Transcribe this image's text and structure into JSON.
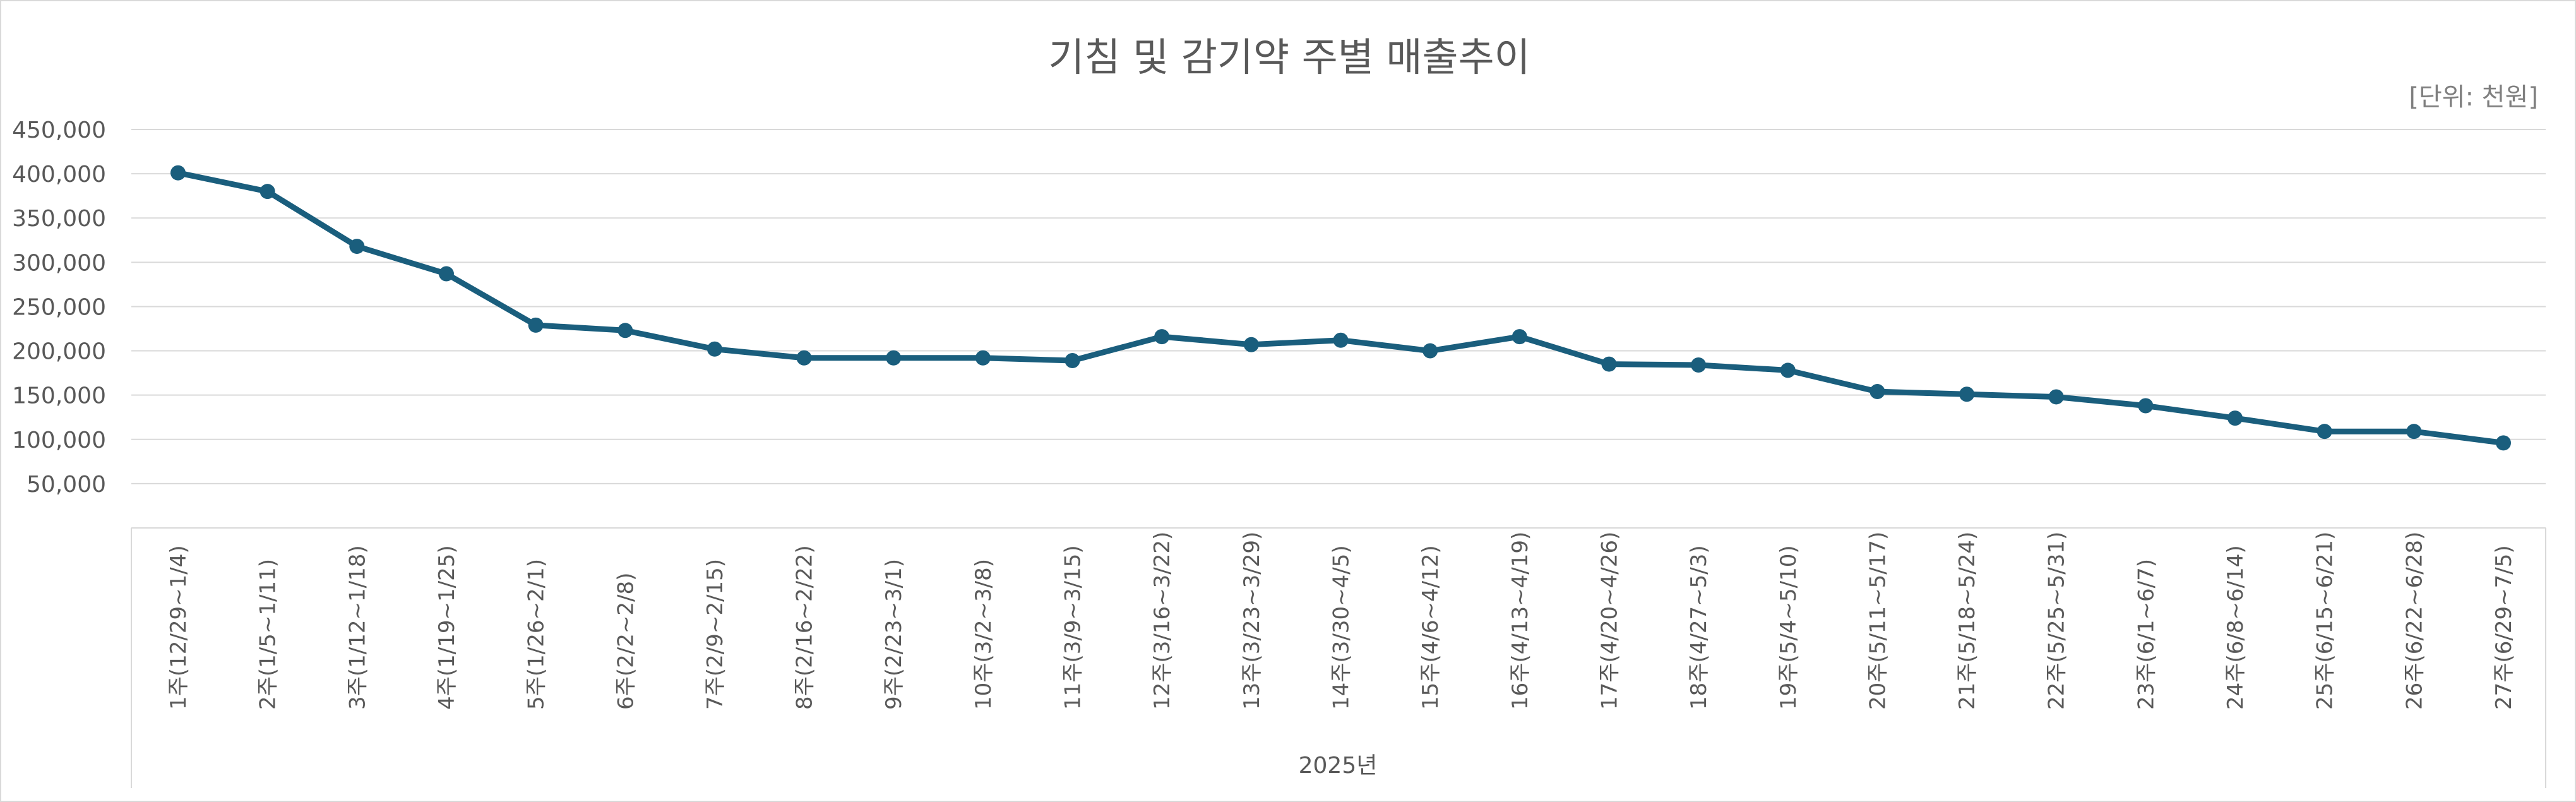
{
  "chart_data": {
    "type": "line",
    "title": "기침 및 감기약 주별 매출추이",
    "unit_label": "[단위: 천원]",
    "x_group_label": "2025년",
    "categories": [
      "1주(12/29~1/4)",
      "2주(1/5~1/11)",
      "3주(1/12~1/18)",
      "4주(1/19~1/25)",
      "5주(1/26~2/1)",
      "6주(2/2~2/8)",
      "7주(2/9~2/15)",
      "8주(2/16~2/22)",
      "9주(2/23~3/1)",
      "10주(3/2~3/8)",
      "11주(3/9~3/15)",
      "12주(3/16~3/22)",
      "13주(3/23~3/29)",
      "14주(3/30~4/5)",
      "15주(4/6~4/12)",
      "16주(4/13~4/19)",
      "17주(4/20~4/26)",
      "18주(4/27~5/3)",
      "19주(5/4~5/10)",
      "20주(5/11~5/17)",
      "21주(5/18~5/24)",
      "22주(5/25~5/31)",
      "23주(6/1~6/7)",
      "24주(6/8~6/14)",
      "25주(6/15~6/21)",
      "26주(6/22~6/28)",
      "27주(6/29~7/5)"
    ],
    "series": [
      {
        "values": [
          401000,
          380000,
          318000,
          287000,
          229000,
          223000,
          202000,
          192000,
          192000,
          192000,
          189000,
          216000,
          207000,
          212000,
          200000,
          216000,
          185000,
          184000,
          178000,
          154000,
          151000,
          148000,
          138000,
          124000,
          109000,
          109000,
          96000
        ],
        "color": "#1a5e7d"
      }
    ],
    "ylim": [
      0,
      450000
    ],
    "yticks": [
      50000,
      100000,
      150000,
      200000,
      250000,
      300000,
      350000,
      400000,
      450000
    ],
    "ytick_labels": [
      "50,000",
      "100,000",
      "150,000",
      "200,000",
      "250,000",
      "300,000",
      "350,000",
      "400,000",
      "450,000"
    ],
    "grid": true,
    "gridline_color": "#d9d9d9",
    "legend": "none"
  }
}
